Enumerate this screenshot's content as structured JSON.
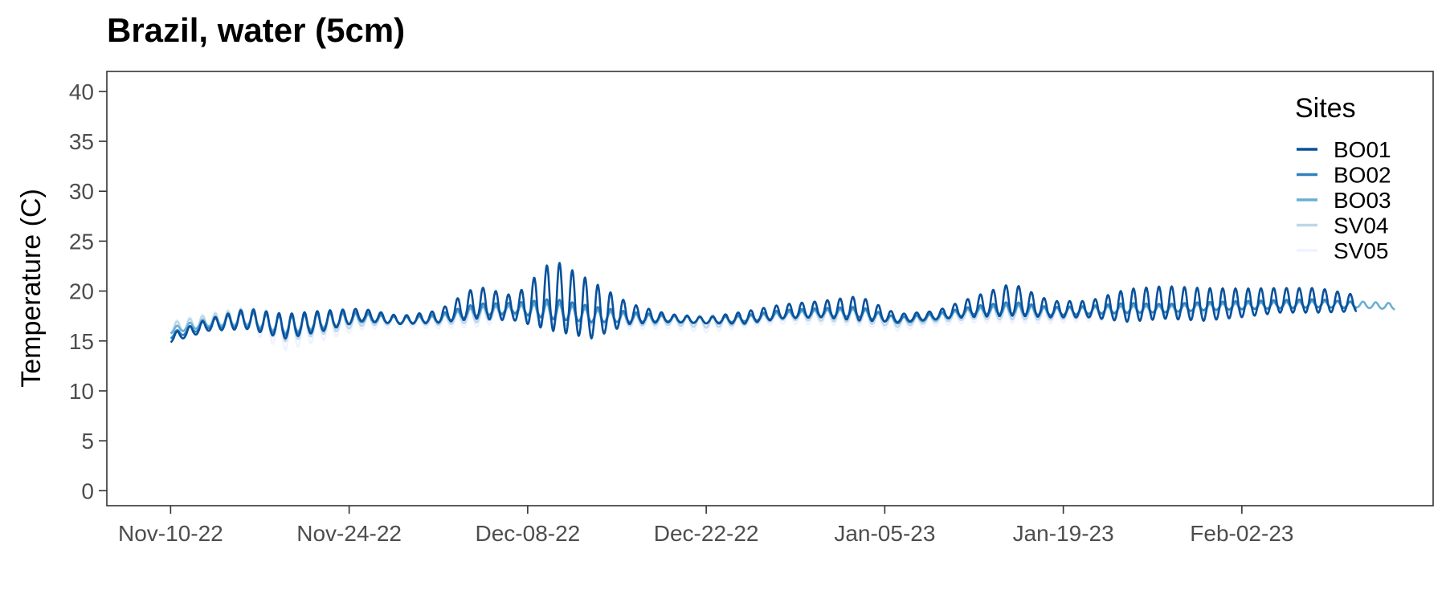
{
  "chart_data": {
    "type": "line",
    "title": "Brazil, water (5cm)",
    "xlabel": "",
    "ylabel": "Temperature (C)",
    "ylim": [
      -1.5,
      42
    ],
    "xlim": [
      "2022-11-05",
      "2023-02-17"
    ],
    "x_ticks": [
      {
        "date": "2022-11-10",
        "label": "Nov-10-22"
      },
      {
        "date": "2022-11-24",
        "label": "Nov-24-22"
      },
      {
        "date": "2022-12-08",
        "label": "Dec-08-22"
      },
      {
        "date": "2022-12-22",
        "label": "Dec-22-22"
      },
      {
        "date": "2023-01-05",
        "label": "Jan-05-23"
      },
      {
        "date": "2023-01-19",
        "label": "Jan-19-23"
      },
      {
        "date": "2023-02-02",
        "label": "Feb-02-23"
      }
    ],
    "y_ticks": [
      0,
      5,
      10,
      15,
      20,
      25,
      30,
      35,
      40
    ],
    "grid": false,
    "legend": {
      "title": "Sites",
      "position": "top-right"
    },
    "series": [
      {
        "name": "BO01",
        "color": "#08519c",
        "x": [
          "2022-11-10",
          "2022-11-13",
          "2022-11-16",
          "2022-11-19",
          "2022-11-22",
          "2022-11-25",
          "2022-11-28",
          "2022-12-01",
          "2022-12-04",
          "2022-12-07",
          "2022-12-10",
          "2022-12-13",
          "2022-12-16",
          "2022-12-19",
          "2022-12-22",
          "2022-12-25",
          "2022-12-28",
          "2022-12-31",
          "2023-01-03",
          "2023-01-06",
          "2023-01-09",
          "2023-01-12",
          "2023-01-15",
          "2023-01-18",
          "2023-01-21",
          "2023-01-24",
          "2023-01-27",
          "2023-01-30",
          "2023-02-02",
          "2023-02-05",
          "2023-02-08",
          "2023-02-11"
        ],
        "y": [
          15.2,
          16.5,
          17.0,
          16.2,
          16.8,
          17.5,
          17.0,
          17.3,
          18.5,
          18.0,
          18.8,
          17.5,
          17.5,
          17.2,
          17.0,
          17.2,
          17.8,
          18.0,
          18.0,
          17.2,
          17.5,
          18.2,
          18.8,
          18.0,
          18.0,
          18.2,
          18.5,
          18.3,
          18.5,
          18.8,
          18.8,
          18.6
        ],
        "amp": [
          0.4,
          0.6,
          1.0,
          1.2,
          1.0,
          0.6,
          0.4,
          0.6,
          1.6,
          1.2,
          3.5,
          2.8,
          1.0,
          0.4,
          0.3,
          0.6,
          0.7,
          0.8,
          1.2,
          0.4,
          0.4,
          1.0,
          1.6,
          0.8,
          0.8,
          1.6,
          1.6,
          1.6,
          1.4,
          1.2,
          1.2,
          0.8
        ]
      },
      {
        "name": "BO02",
        "color": "#3182bd",
        "x": [
          "2022-11-10",
          "2022-11-13",
          "2022-11-16",
          "2022-11-19",
          "2022-11-22",
          "2022-11-25",
          "2022-11-28",
          "2022-12-01",
          "2022-12-04",
          "2022-12-07",
          "2022-12-10",
          "2022-12-13",
          "2022-12-16",
          "2022-12-19",
          "2022-12-22",
          "2022-12-25",
          "2022-12-28",
          "2022-12-31",
          "2023-01-03",
          "2023-01-06",
          "2023-01-09",
          "2023-01-12",
          "2023-01-15",
          "2023-01-18",
          "2023-01-21",
          "2023-01-24",
          "2023-01-27",
          "2023-01-30",
          "2023-02-02",
          "2023-02-05",
          "2023-02-08",
          "2023-02-11"
        ],
        "y": [
          15.5,
          16.6,
          17.0,
          16.3,
          16.8,
          17.3,
          17.0,
          17.2,
          18.0,
          18.2,
          18.0,
          17.5,
          17.3,
          17.2,
          17.0,
          17.2,
          17.6,
          17.8,
          17.8,
          17.0,
          17.4,
          18.0,
          18.2,
          17.9,
          18.0,
          18.2,
          18.2,
          18.4,
          18.5,
          18.6,
          18.7,
          18.5
        ],
        "amp": [
          0.3,
          0.4,
          0.8,
          0.9,
          0.8,
          0.5,
          0.3,
          0.4,
          0.6,
          0.5,
          1.0,
          0.8,
          0.5,
          0.3,
          0.3,
          0.3,
          0.4,
          0.4,
          0.5,
          0.3,
          0.3,
          0.4,
          0.6,
          0.4,
          0.4,
          0.5,
          0.4,
          0.4,
          0.4,
          0.4,
          0.4,
          0.3
        ]
      },
      {
        "name": "BO03",
        "color": "#6baed6",
        "x": [
          "2022-11-10",
          "2022-11-13",
          "2022-11-16",
          "2022-11-19",
          "2022-11-22",
          "2022-11-25",
          "2022-11-28",
          "2022-12-01",
          "2022-12-04",
          "2022-12-07",
          "2022-12-10",
          "2022-12-13",
          "2022-12-16",
          "2022-12-19",
          "2022-12-22",
          "2022-12-25",
          "2022-12-28",
          "2022-12-31",
          "2023-01-03",
          "2023-01-06",
          "2023-01-09",
          "2023-01-12",
          "2023-01-15",
          "2023-01-18",
          "2023-01-21",
          "2023-01-24",
          "2023-01-27",
          "2023-01-30",
          "2023-02-02",
          "2023-02-05",
          "2023-02-08",
          "2023-02-11",
          "2023-02-14"
        ],
        "y": [
          16.0,
          16.8,
          17.1,
          16.4,
          16.9,
          17.2,
          17.0,
          17.1,
          17.8,
          18.0,
          17.8,
          17.4,
          17.2,
          17.1,
          17.0,
          17.1,
          17.5,
          17.7,
          17.7,
          17.0,
          17.3,
          17.9,
          18.0,
          17.8,
          18.0,
          18.1,
          18.1,
          18.3,
          18.4,
          18.5,
          18.6,
          18.6,
          18.4
        ],
        "amp": [
          0.3,
          0.4,
          0.6,
          0.8,
          0.7,
          0.4,
          0.3,
          0.3,
          0.5,
          0.4,
          0.8,
          0.6,
          0.4,
          0.3,
          0.3,
          0.3,
          0.3,
          0.3,
          0.4,
          0.3,
          0.3,
          0.3,
          0.5,
          0.4,
          0.3,
          0.3,
          0.3,
          0.3,
          0.3,
          0.3,
          0.3,
          0.3,
          0.3
        ]
      },
      {
        "name": "SV04",
        "color": "#bdd7e7",
        "x": [
          "2022-11-10",
          "2022-11-13",
          "2022-11-16",
          "2022-11-19",
          "2022-11-22",
          "2022-11-25",
          "2022-11-28",
          "2022-12-01",
          "2022-12-04",
          "2022-12-07",
          "2022-12-10",
          "2022-12-13",
          "2022-12-16",
          "2022-12-19",
          "2022-12-22",
          "2022-12-25",
          "2022-12-28",
          "2022-12-31",
          "2023-01-03",
          "2023-01-06",
          "2023-01-09",
          "2023-01-12",
          "2023-01-15",
          "2023-01-18",
          "2023-01-21",
          "2023-01-24",
          "2023-01-27",
          "2023-01-30",
          "2023-02-02"
        ],
        "y": [
          16.2,
          16.9,
          17.2,
          16.0,
          16.5,
          17.0,
          17.0,
          17.0,
          17.5,
          18.0,
          17.5,
          17.3,
          17.0,
          17.0,
          16.8,
          17.0,
          17.5,
          17.5,
          17.5,
          16.8,
          17.2,
          17.6,
          17.8,
          17.6,
          17.8,
          18.0,
          18.0,
          18.2,
          18.3
        ],
        "amp": [
          0.5,
          0.6,
          0.9,
          1.3,
          1.0,
          0.6,
          0.4,
          0.5,
          0.8,
          0.6,
          1.2,
          0.9,
          0.6,
          0.5,
          0.6,
          0.5,
          0.5,
          0.6,
          0.8,
          0.5,
          0.4,
          0.5,
          0.8,
          0.6,
          0.6,
          0.6,
          0.5,
          0.5,
          0.5
        ]
      },
      {
        "name": "SV05",
        "color": "#eff3ff",
        "x": [
          "2022-11-10",
          "2022-11-13",
          "2022-11-16",
          "2022-11-19",
          "2022-11-22",
          "2022-11-25",
          "2022-11-28",
          "2022-12-01",
          "2022-12-04",
          "2022-12-07",
          "2022-12-10",
          "2022-12-13",
          "2022-12-16",
          "2022-12-19",
          "2022-12-22",
          "2022-12-25",
          "2022-12-28",
          "2022-12-31",
          "2023-01-03",
          "2023-01-06",
          "2023-01-09",
          "2023-01-12",
          "2023-01-15",
          "2023-01-18",
          "2023-01-21",
          "2023-01-24",
          "2023-01-27",
          "2023-01-30",
          "2023-02-02"
        ],
        "y": [
          16.0,
          16.8,
          17.0,
          15.5,
          16.2,
          16.8,
          16.8,
          16.8,
          17.2,
          17.8,
          17.2,
          17.0,
          16.8,
          16.8,
          16.5,
          16.8,
          17.2,
          17.3,
          17.3,
          16.5,
          17.0,
          17.4,
          17.6,
          17.4,
          17.6,
          17.8,
          17.9,
          18.0,
          18.1
        ],
        "amp": [
          0.8,
          0.8,
          1.2,
          1.8,
          1.4,
          0.8,
          0.6,
          0.7,
          1.0,
          0.8,
          1.6,
          1.2,
          0.8,
          0.7,
          0.8,
          0.6,
          0.6,
          0.8,
          1.0,
          0.6,
          0.6,
          0.7,
          1.0,
          0.8,
          0.8,
          0.7,
          0.7,
          0.6,
          0.6
        ]
      }
    ]
  }
}
